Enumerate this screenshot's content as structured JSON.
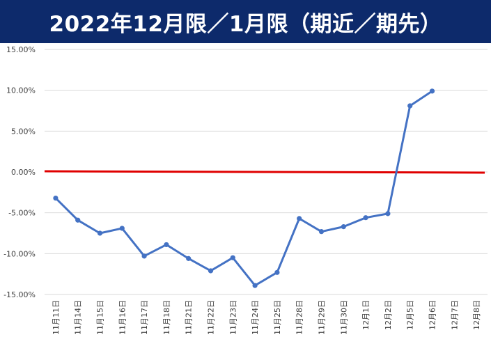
{
  "header": {
    "title": "2022年12月限／1月限（期近／期先）"
  },
  "chart_data": {
    "type": "line",
    "title": "2022年12月限／1月限（期近／期先）",
    "categories": [
      "11月11日",
      "11月14日",
      "11月15日",
      "11月16日",
      "11月17日",
      "11月18日",
      "11月21日",
      "11月22日",
      "11月23日",
      "11月24日",
      "11月25日",
      "11月28日",
      "11月29日",
      "11月30日",
      "12月1日",
      "12月2日",
      "12月5日",
      "12月6日",
      "12月7日",
      "12月8日"
    ],
    "series": [
      {
        "values": [
          -3.2,
          -5.9,
          -7.5,
          -6.9,
          -10.3,
          -8.9,
          -10.6,
          -12.1,
          -10.5,
          -13.9,
          -12.3,
          -5.7,
          -7.3,
          -6.7,
          -5.6,
          -5.1,
          8.1,
          9.9,
          null,
          null
        ]
      }
    ],
    "reference_line": 0.0,
    "y_ticks": [
      "15.00%",
      "10.00%",
      "5.00%",
      "0.00%",
      "-5.00%",
      "-10.00%",
      "-15.00%"
    ],
    "ylim": [
      -15,
      15
    ],
    "grid": true,
    "colors": {
      "series": "#4472c4",
      "reference": "#e00000",
      "banner": "#0d2a6b",
      "grid": "#d9d9d9"
    }
  }
}
